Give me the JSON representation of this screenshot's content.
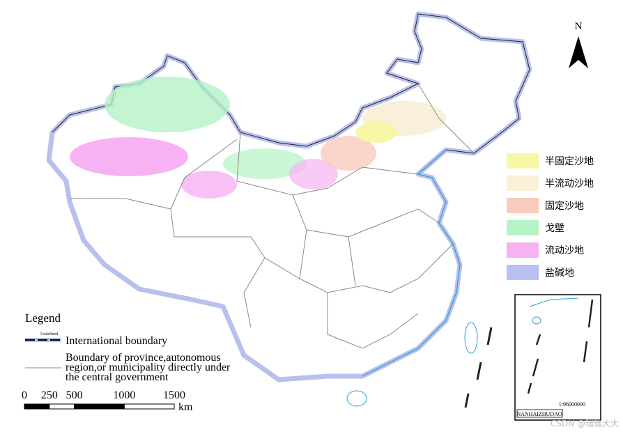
{
  "north_arrow": "N",
  "legend": {
    "title": "Legend",
    "undefined_label": "Undefined",
    "items": [
      {
        "lines": [
          "International boundary"
        ]
      },
      {
        "lines": [
          "Boundary of province,autonomous",
          "region,or municipality directly under",
          "the central government"
        ]
      }
    ]
  },
  "land_types": [
    {
      "label": "半固定沙地",
      "color": "#f8f7a6"
    },
    {
      "label": "半流动沙地",
      "color": "#f8f0d8"
    },
    {
      "label": "固定沙地",
      "color": "#f8cbbe"
    },
    {
      "label": "戈壁",
      "color": "#b5f3c6"
    },
    {
      "label": "流动沙地",
      "color": "#f6b2f3"
    },
    {
      "label": "盐碱地",
      "color": "#b8c0f2"
    }
  ],
  "scale_bar": {
    "ticks": [
      0,
      250,
      500,
      1000,
      1500
    ],
    "unit": "km"
  },
  "inset": {
    "scale": "1:96000000",
    "label": "NANHAIZHUDAO"
  },
  "watermark": "CSDN @瑞瑞大大"
}
